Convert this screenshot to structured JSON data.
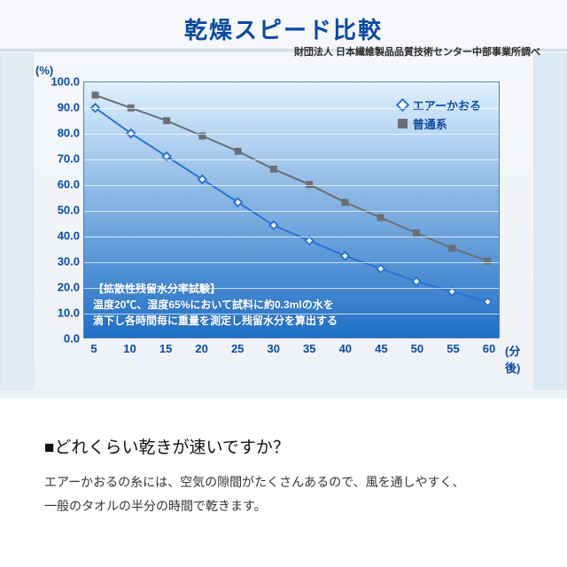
{
  "chart": {
    "type": "line",
    "title": "乾燥スピード比較",
    "title_fontsize": 26,
    "title_color": "#0b4aa0",
    "subtitle": "財団法人 日本繊維製品品質技術センター中部事業所調べ",
    "subtitle_fontsize": 11,
    "y_unit": "(%)",
    "x_unit": "(分後)",
    "axis_label_color": "#0b4aa0",
    "axis_label_fontsize": 13,
    "background_gradient_top": "#dff0fd",
    "background_gradient_bottom": "#1f6fc5",
    "grid_color": "#ffffff",
    "ylim": [
      0,
      100
    ],
    "ytick_step": 10,
    "y_ticks": [
      "0.0",
      "10.0",
      "20.0",
      "30.0",
      "40.0",
      "50.0",
      "60.0",
      "70.0",
      "80.0",
      "90.0",
      "100.0"
    ],
    "x_ticks": [
      5,
      10,
      15,
      20,
      25,
      30,
      35,
      40,
      45,
      50,
      55,
      60
    ],
    "legend": {
      "items": [
        {
          "label": "エアーかおる",
          "marker": "diamond-open",
          "color": "#2a72d4"
        },
        {
          "label": "普通系",
          "marker": "square-solid",
          "color": "#6a6f75"
        }
      ],
      "fontsize": 13
    },
    "series": [
      {
        "name": "エアーかおる",
        "marker": "diamond-open",
        "marker_size": 9,
        "line_color": "#2a72d4",
        "marker_border_color": "#2a72d4",
        "marker_fill_color": "#ffffff",
        "line_width": 2,
        "x": [
          5,
          10,
          15,
          20,
          25,
          30,
          35,
          40,
          45,
          50,
          55,
          60
        ],
        "y": [
          90,
          80,
          71,
          62,
          53,
          44,
          38,
          32,
          27,
          22,
          18,
          14
        ]
      },
      {
        "name": "普通系",
        "marker": "square-solid",
        "marker_size": 8,
        "line_color": "#6a6f75",
        "marker_fill_color": "#6a6f75",
        "line_width": 2,
        "x": [
          5,
          10,
          15,
          20,
          25,
          30,
          35,
          40,
          45,
          50,
          55,
          60
        ],
        "y": [
          95,
          90,
          85,
          79,
          73,
          66,
          60,
          53,
          47,
          41,
          35,
          30
        ]
      }
    ],
    "test_note_title": "【拡散性残留水分率試験】",
    "test_note_body_1": "温度20℃、湿度65%において試料に約0.3mlの水を",
    "test_note_body_2": "滴下し各時間毎に重量を測定し残留水分を算出する",
    "test_note_fontsize": 12
  },
  "text": {
    "question": "■どれくらい乾きが速いですか？",
    "question_fontsize": 19,
    "body_line1": "エアーかおるの糸には、空気の隙間がたくさんあるので、風を通しやすく、",
    "body_line2": "一般のタオルの半分の時間で乾きます。",
    "body_fontsize": 14
  }
}
